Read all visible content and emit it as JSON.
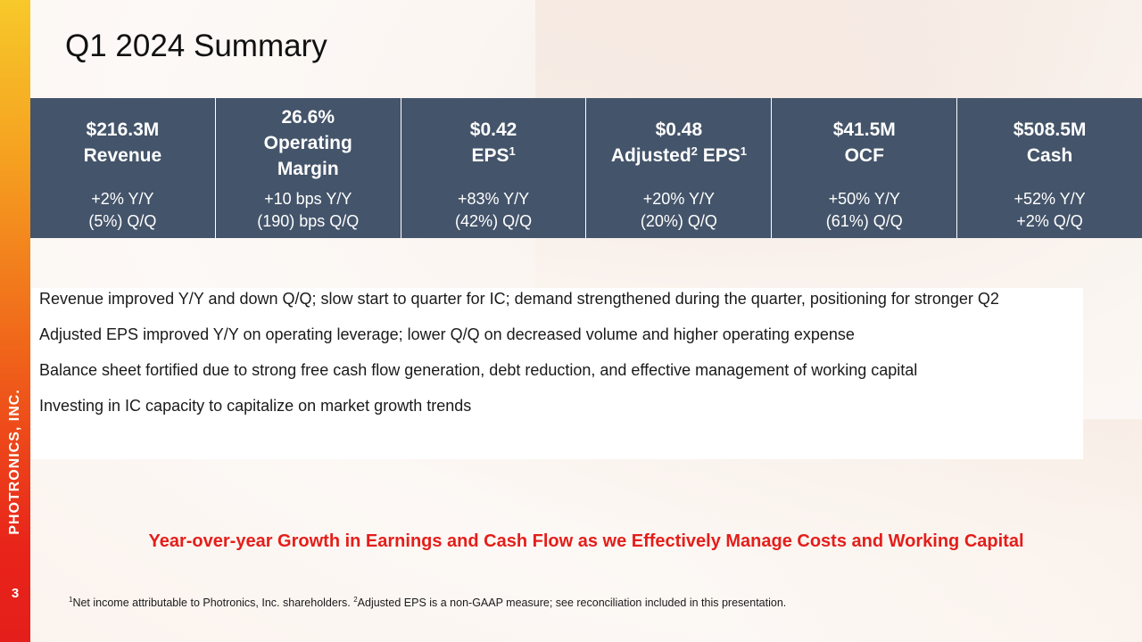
{
  "sidebar": {
    "brand": "PHOTRONICS, INC.",
    "page_number": "3"
  },
  "title": "Q1 2024 Summary",
  "metrics": [
    {
      "line1": "$216.3M",
      "line2": "Revenue",
      "yoy": "+2% Y/Y",
      "qoq": "(5%) Q/Q"
    },
    {
      "line1": "26.6%",
      "line2": "Operating",
      "line3": "Margin",
      "yoy": "+10 bps Y/Y",
      "qoq": "(190) bps Q/Q"
    },
    {
      "line1": "$0.42",
      "line2a": "EPS",
      "line2a_sup": "1",
      "yoy": "+83% Y/Y",
      "qoq": "(42%) Q/Q"
    },
    {
      "line1": "$0.48",
      "line2a": "Adjusted",
      "line2a_sup": "2",
      "line2b": " EPS",
      "line2b_sup": "1",
      "yoy": "+20% Y/Y",
      "qoq": "(20%) Q/Q"
    },
    {
      "line1": "$41.5M",
      "line2": "OCF",
      "yoy": "+50% Y/Y",
      "qoq": "(61%) Q/Q"
    },
    {
      "line1": "$508.5M",
      "line2": "Cash",
      "yoy": "+52% Y/Y",
      "qoq": "+2% Q/Q"
    }
  ],
  "bullets": [
    "Revenue improved Y/Y and down Q/Q; slow start to quarter for IC; demand strengthened during the quarter, positioning for stronger Q2",
    "Adjusted EPS improved Y/Y on operating leverage; lower Q/Q on decreased volume and higher operating expense",
    "Balance sheet fortified due to strong free cash flow generation, debt reduction, and effective management of working capital",
    "Investing in IC capacity to capitalize on market growth trends"
  ],
  "tagline": "Year-over-year Growth in Earnings and Cash Flow as we Effectively Manage Costs and Working Capital",
  "footnote": {
    "sup1": "1",
    "text1": "Net income attributable to Photronics, Inc. shareholders. ",
    "sup2": "2",
    "text2": "Adjusted EPS is a non-GAAP measure; see reconciliation included in this presentation."
  },
  "colors": {
    "accent_red": "#e41e1a",
    "table_bg": "#44546a"
  }
}
